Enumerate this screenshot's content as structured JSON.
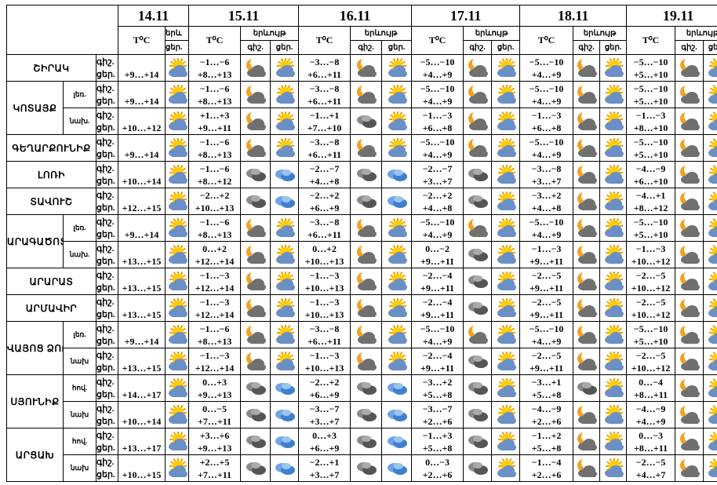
{
  "header": {
    "temp_label": "T⁰C",
    "phen_label": "երևույթ",
    "phen_label_short": "երև",
    "night_label": "գիշ.",
    "day_label": "ցեր.",
    "days": [
      "14.11",
      "15.11",
      "16.11",
      "17.11",
      "18.11",
      "19.11"
    ]
  },
  "time_labels": [
    "գիշ.",
    "ցեր."
  ],
  "rows": [
    {
      "region": "ՇԻՐԱԿ",
      "sub": "",
      "temp14": "+9…+14",
      "icon14": "partly-cloudy-icon",
      "d": [
        [
          "−1…−6",
          "+8…+13",
          "moon-cloud-icon",
          "sun-cloud-icon"
        ],
        [
          "−3…−8",
          "+6…+11",
          "moon-cloud-icon",
          "sun-cloud-icon"
        ],
        [
          "−5…−10",
          "+4…+9",
          "moon-cloud-icon",
          "sun-cloud-icon"
        ],
        [
          "−5…−10",
          "+4…+9",
          "moon-cloud-icon",
          "sun-cloud-icon"
        ],
        [
          "−5…−10",
          "+5…+10",
          "moon-cloud-icon",
          "sun-cloud-icon"
        ]
      ]
    },
    {
      "region": "ԿՈՏԱՅՔ",
      "sub": "լեռ.",
      "temp14": "+9…+14",
      "icon14": "partly-cloudy-icon",
      "d": [
        [
          "−1…−6",
          "+8…+13",
          "moon-cloud-icon",
          "sun-cloud-icon"
        ],
        [
          "−3…−8",
          "+6…+11",
          "moon-cloud-icon",
          "sun-cloud-icon"
        ],
        [
          "−5…−10",
          "+4…+9",
          "moon-cloud-icon",
          "sun-cloud-icon"
        ],
        [
          "−5…−10",
          "+4…+9",
          "moon-cloud-icon",
          "sun-cloud-icon"
        ],
        [
          "−5…−10",
          "+5…+10",
          "moon-cloud-icon",
          "sun-cloud-icon"
        ]
      ]
    },
    {
      "region": "",
      "sub": "նախ.",
      "temp14": "+10…+12",
      "icon14": "partly-cloudy-icon",
      "d": [
        [
          "+1…+3",
          "+9…+11",
          "moon-cloud-icon",
          "sun-cloud-icon"
        ],
        [
          "−1…+1",
          "+7…+10",
          "cloud-icon",
          "sun-cloud-icon"
        ],
        [
          "−1…−3",
          "+6…+8",
          "moon-cloud-icon",
          "sun-cloud-icon"
        ],
        [
          "−1…−3",
          "+6…+8",
          "moon-cloud-icon",
          "sun-cloud-icon"
        ],
        [
          "−1…−3",
          "+8…+10",
          "moon-cloud-icon",
          "sun-cloud-icon"
        ]
      ]
    },
    {
      "region": "ԳԵՂԱՐՔՈՒՆԻՔ",
      "sub": "",
      "temp14": "+9…+14",
      "icon14": "partly-cloudy-icon",
      "d": [
        [
          "−1…−6",
          "+8…+13",
          "moon-cloud-icon",
          "sun-cloud-icon"
        ],
        [
          "−3…−8",
          "+6…+11",
          "moon-cloud-icon",
          "sun-cloud-icon"
        ],
        [
          "−5…−10",
          "+4…+9",
          "moon-cloud-icon",
          "sun-cloud-icon"
        ],
        [
          "−5…−10",
          "+4…+9",
          "moon-cloud-icon",
          "sun-cloud-icon"
        ],
        [
          "−5…−10",
          "+5…+10",
          "moon-cloud-icon",
          "sun-cloud-icon"
        ]
      ]
    },
    {
      "region": "ԼՈՌԻ",
      "sub": "",
      "temp14": "+10…+14",
      "icon14": "partly-cloudy-icon",
      "d": [
        [
          "−1…−6",
          "+8…+12",
          "cloud-icon",
          "sky-cloud-icon"
        ],
        [
          "−2…−7",
          "+4…+8",
          "cloud-icon",
          "sky-cloud-icon"
        ],
        [
          "−2…−7",
          "+3…+7",
          "cloud-icon",
          "sun-cloud-icon"
        ],
        [
          "−3…−8",
          "+3…+7",
          "moon-cloud-icon",
          "sun-cloud-icon"
        ],
        [
          "−4…−9",
          "+6…+10",
          "moon-cloud-icon",
          "sun-cloud-icon"
        ]
      ]
    },
    {
      "region": "ՏԱՎՈՒՇ",
      "sub": "",
      "temp14": "+12…+15",
      "icon14": "partly-cloudy-icon",
      "d": [
        [
          "−2…+2",
          "+10…+13",
          "cloud-icon",
          "sky-cloud-icon"
        ],
        [
          "−2…+2",
          "+6…+9",
          "cloud-icon",
          "sky-cloud-icon"
        ],
        [
          "−2…+2",
          "+4…+8",
          "cloud-icon",
          "sun-cloud-icon"
        ],
        [
          "−3…+2",
          "+4…+8",
          "moon-cloud-icon",
          "sun-cloud-icon"
        ],
        [
          "−4…+1",
          "+8…+12",
          "moon-cloud-icon",
          "sun-cloud-icon"
        ]
      ]
    },
    {
      "region": "ԱՐԱԳԱԾՈՏՆ",
      "sub": "լեռ.",
      "temp14": "+9…+14",
      "icon14": "partly-cloudy-icon",
      "d": [
        [
          "−1…−6",
          "+8…+13",
          "moon-cloud-icon",
          "sun-cloud-icon"
        ],
        [
          "−3…−8",
          "+6…+11",
          "moon-cloud-icon",
          "sun-cloud-icon"
        ],
        [
          "−5…−10",
          "+4…+9",
          "moon-cloud-icon",
          "sun-cloud-icon"
        ],
        [
          "−5…−10",
          "+4…+9",
          "moon-cloud-icon",
          "sun-cloud-icon"
        ],
        [
          "−5…−10",
          "+5…+10",
          "moon-cloud-icon",
          "sun-cloud-icon"
        ]
      ]
    },
    {
      "region": "",
      "sub": "նախ.",
      "temp14": "+13…+15",
      "icon14": "partly-cloudy-icon",
      "d": [
        [
          "0…+2",
          "+12…+14",
          "moon-cloud-icon",
          "sun-cloud-icon"
        ],
        [
          "0…+2",
          "+10…+13",
          "moon-cloud-icon",
          "sun-cloud-icon"
        ],
        [
          "0…−2",
          "+9…+11",
          "cloud-icon",
          "sun-cloud-icon"
        ],
        [
          "−1…−3",
          "+9…+11",
          "moon-cloud-icon",
          "sun-cloud-icon"
        ],
        [
          "−1…−3",
          "+10…+12",
          "moon-cloud-icon",
          "sun-cloud-icon"
        ]
      ]
    },
    {
      "region": "ԱՐԱՐԱՏ",
      "sub": "",
      "temp14": "+13…+15",
      "icon14": "partly-cloudy-icon",
      "d": [
        [
          "−1…−3",
          "+12…+14",
          "moon-cloud-icon",
          "sun-cloud-icon"
        ],
        [
          "−1…−3",
          "+10…+13",
          "moon-cloud-icon",
          "sun-cloud-icon"
        ],
        [
          "−2…−4",
          "+9…+11",
          "cloud-icon",
          "sun-cloud-icon"
        ],
        [
          "−2…−5",
          "+9…+11",
          "moon-cloud-icon",
          "sun-cloud-icon"
        ],
        [
          "−2…−5",
          "+10…+12",
          "moon-cloud-icon",
          "sun-cloud-icon"
        ]
      ]
    },
    {
      "region": "ԱՐՄԱՎԻՐ",
      "sub": "",
      "temp14": "+13…+15",
      "icon14": "partly-cloudy-icon",
      "d": [
        [
          "−1…−3",
          "+12…+14",
          "moon-cloud-icon",
          "sun-cloud-icon"
        ],
        [
          "−1…−3",
          "+10…+13",
          "moon-cloud-icon",
          "sun-cloud-icon"
        ],
        [
          "−2…−4",
          "+9…+11",
          "cloud-icon",
          "sun-cloud-icon"
        ],
        [
          "−2…−5",
          "+9…+11",
          "moon-cloud-icon",
          "sun-cloud-icon"
        ],
        [
          "−2…−5",
          "+10…+12",
          "moon-cloud-icon",
          "sun-cloud-icon"
        ]
      ]
    },
    {
      "region": "ՎԱՅՈՑ ՁՈՐ",
      "sub": "լեռ.",
      "temp14": "+9…+14",
      "icon14": "partly-cloudy-icon",
      "d": [
        [
          "−1…−6",
          "+8…+13",
          "moon-cloud-icon",
          "sun-cloud-icon"
        ],
        [
          "−3…−8",
          "+6…+11",
          "moon-cloud-icon",
          "sun-cloud-icon"
        ],
        [
          "−5…−10",
          "+4…+9",
          "moon-cloud-icon",
          "sun-cloud-icon"
        ],
        [
          "−5…−10",
          "+4…+9",
          "moon-cloud-icon",
          "sun-cloud-icon"
        ],
        [
          "−5…−10",
          "+5…+10",
          "moon-cloud-icon",
          "sun-cloud-icon"
        ]
      ]
    },
    {
      "region": "",
      "sub": "նախ",
      "temp14": "+13…+15",
      "icon14": "partly-cloudy-icon",
      "d": [
        [
          "−1…−3",
          "+12…+14",
          "moon-cloud-icon",
          "sun-cloud-icon"
        ],
        [
          "−1…−3",
          "+10…+13",
          "moon-cloud-icon",
          "sun-cloud-icon"
        ],
        [
          "−2…−4",
          "+9…+11",
          "cloud-icon",
          "sun-cloud-icon"
        ],
        [
          "−2…−5",
          "+9…+11",
          "moon-cloud-icon",
          "sun-cloud-icon"
        ],
        [
          "−2…−5",
          "+10…+12",
          "moon-cloud-icon",
          "sun-cloud-icon"
        ]
      ]
    },
    {
      "region": "ՍՅՈՒՆԻՔ",
      "sub": "հով.",
      "temp14": "+14…+17",
      "icon14": "partly-cloudy-icon",
      "d": [
        [
          "0…+3",
          "+9…+13",
          "cloud-icon",
          "sky-cloud-icon"
        ],
        [
          "−2…+2",
          "+6…+9",
          "cloud-icon",
          "sky-cloud-icon"
        ],
        [
          "−3…+2",
          "+5…+8",
          "cloud-icon",
          "sun-cloud-icon"
        ],
        [
          "−3…+1",
          "+5…+8",
          "cloud-icon",
          "sun-cloud-icon"
        ],
        [
          "0…−4",
          "+8…+11",
          "moon-cloud-icon",
          "sun-cloud-icon"
        ]
      ]
    },
    {
      "region": "",
      "sub": "նախ",
      "temp14": "+10…+14",
      "icon14": "partly-cloudy-icon",
      "d": [
        [
          "0…−5",
          "+7…+11",
          "cloud-icon",
          "sky-cloud-icon"
        ],
        [
          "−3…−7",
          "+3…+7",
          "cloud-icon",
          "sky-cloud-icon"
        ],
        [
          "−3…−7",
          "+2…+6",
          "cloud-icon",
          "sun-cloud-icon"
        ],
        [
          "−4…−9",
          "+2…+6",
          "moon-cloud-icon",
          "sun-cloud-icon"
        ],
        [
          "−4…−9",
          "+4…+9",
          "moon-cloud-icon",
          "sun-cloud-icon"
        ]
      ]
    },
    {
      "region": "ԱՐՑԱԽ",
      "sub": "հով.",
      "temp14": "+13…+17",
      "icon14": "partly-cloudy-icon",
      "d": [
        [
          "+3…+6",
          "+9…+13",
          "cloud-icon",
          "sky-cloud-icon"
        ],
        [
          "0…+3",
          "+6…+9",
          "cloud-icon",
          "sky-cloud-icon"
        ],
        [
          "−1…+3",
          "+5…+8",
          "cloud-icon",
          "sun-cloud-icon"
        ],
        [
          "−1…+2",
          "+5…+8",
          "moon-cloud-icon",
          "sun-cloud-icon"
        ],
        [
          "0…−3",
          "+8…+11",
          "moon-cloud-icon",
          "sun-cloud-icon"
        ]
      ]
    },
    {
      "region": "",
      "sub": "նախ",
      "temp14": "+10…+15",
      "icon14": "partly-cloudy-icon",
      "d": [
        [
          "+2…+5",
          "+7…+11",
          "cloud-icon",
          "sky-cloud-icon"
        ],
        [
          "−2…+1",
          "+3…+7",
          "cloud-icon",
          "sky-cloud-icon"
        ],
        [
          "0…−3",
          "+2…+6",
          "cloud-icon",
          "sun-cloud-icon"
        ],
        [
          "−1…−4",
          "+2…+6",
          "moon-cloud-icon",
          "sun-cloud-icon"
        ],
        [
          "−2…−5",
          "+4…+7",
          "moon-cloud-icon",
          "sun-cloud-icon"
        ]
      ]
    }
  ],
  "region_spans": [
    1,
    2,
    0,
    1,
    1,
    1,
    2,
    0,
    1,
    1,
    2,
    0,
    2,
    0,
    2,
    0
  ],
  "sub_colspan_regions": [
    0,
    3,
    4,
    5,
    8,
    9
  ]
}
